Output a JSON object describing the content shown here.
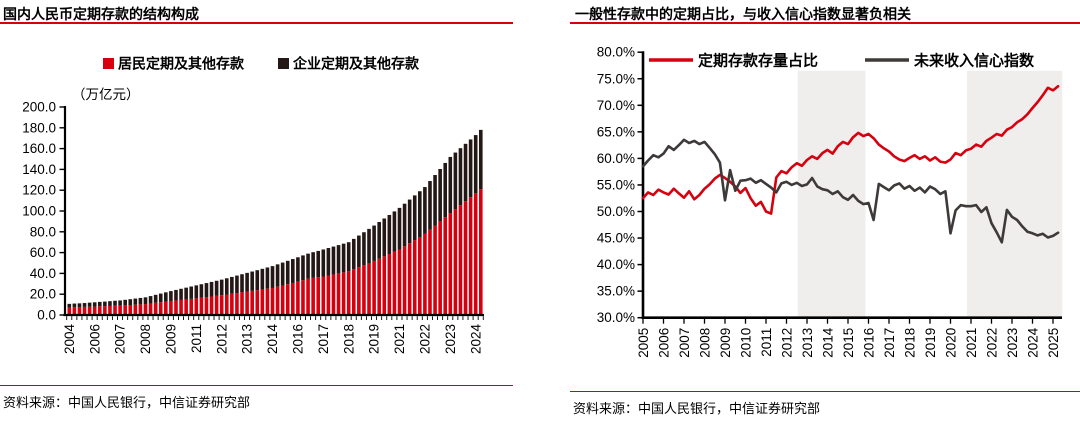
{
  "page": {
    "accent_color": "#d7000f",
    "text_color": "#000000"
  },
  "left_panel": {
    "title": "国内人民币定期存款的结构构成",
    "unit_label": "（万亿元）",
    "source": "资料来源：中国人民银行，中信证券研究部"
  },
  "right_panel": {
    "title": "一般性存款中的定期占比，与收入信心指数显著负相关",
    "source": "资料来源：中国人民银行，中信证券研究部"
  },
  "chart_data": [
    {
      "type": "bar",
      "stacked": true,
      "title": "国内人民币定期存款的结构构成",
      "unit": "（万亿元）",
      "frequency": "quarterly",
      "x_start": "2004Q4",
      "x_end": "2025Q1",
      "x_tick_every": 5,
      "x_tick_labels": [
        "2004",
        "2006",
        "2007",
        "2008",
        "2009",
        "2011",
        "2012",
        "2013",
        "2014",
        "2016",
        "2017",
        "2018",
        "2019",
        "2021",
        "2022",
        "2023",
        "2024"
      ],
      "ylim": [
        0,
        200
      ],
      "y_tick_step": 20,
      "grid": false,
      "legend_position": "top",
      "series": [
        {
          "name": "居民定期及其他存款",
          "color": "#d7000f",
          "values": [
            7.3,
            7.5,
            7.6,
            7.8,
            8.0,
            8.2,
            8.4,
            8.5,
            8.7,
            8.9,
            9.0,
            9.3,
            9.6,
            9.9,
            10.2,
            10.5,
            11.1,
            11.7,
            12.3,
            12.9,
            13.5,
            14.0,
            14.5,
            15.0,
            15.5,
            16.0,
            16.6,
            17.2,
            17.8,
            18.4,
            19.0,
            19.7,
            20.4,
            21.1,
            21.8,
            22.5,
            23.2,
            23.9,
            24.6,
            25.3,
            26.0,
            27.2,
            28.4,
            29.6,
            30.8,
            32.0,
            33.5,
            35.0,
            35.7,
            36.3,
            37.0,
            38.0,
            39.0,
            40.0,
            41.0,
            42.0,
            44.0,
            46.0,
            48.0,
            50.0,
            52.0,
            54.2,
            56.4,
            58.6,
            60.8,
            63.0,
            66.0,
            69.0,
            72.0,
            75.0,
            78.0,
            82.0,
            86.0,
            90.0,
            94.0,
            98.0,
            101.8,
            105.6,
            109.4,
            113.2,
            117.0,
            121.0
          ]
        },
        {
          "name": "企业定期及其他存款",
          "color": "#231815",
          "values": [
            3.4,
            3.5,
            3.6,
            3.7,
            3.9,
            4.0,
            4.2,
            4.4,
            4.6,
            4.8,
            5.0,
            5.3,
            5.6,
            5.9,
            6.2,
            6.5,
            7.1,
            7.7,
            8.3,
            8.9,
            9.5,
            10.1,
            10.7,
            11.3,
            11.9,
            12.5,
            13.0,
            13.5,
            14.0,
            14.5,
            15.0,
            15.6,
            16.2,
            16.8,
            17.4,
            18.0,
            18.6,
            19.2,
            19.8,
            20.4,
            21.0,
            21.5,
            22.0,
            22.5,
            23.0,
            23.5,
            23.8,
            24.0,
            24.7,
            25.3,
            26.0,
            26.4,
            26.8,
            27.2,
            27.6,
            28.0,
            29.2,
            30.4,
            31.6,
            32.8,
            34.0,
            35.2,
            36.4,
            37.6,
            38.8,
            40.0,
            41.0,
            42.0,
            43.0,
            44.0,
            45.0,
            46.8,
            48.6,
            50.4,
            52.2,
            54.0,
            54.4,
            54.8,
            55.2,
            55.6,
            56.0,
            57.0
          ]
        }
      ]
    },
    {
      "type": "line",
      "title": "一般性存款中的定期占比，与收入信心指数显著负相关",
      "frequency": "quarterly",
      "x_start": 2005.0,
      "x_step": 0.25,
      "x_tick_labels": [
        "2005",
        "2006",
        "2007",
        "2008",
        "2009",
        "2010",
        "2011",
        "2012",
        "2013",
        "2014",
        "2015",
        "2016",
        "2017",
        "2018",
        "2019",
        "2020",
        "2021",
        "2022",
        "2023",
        "2024",
        "2025"
      ],
      "ylim": [
        30,
        80
      ],
      "y_tick_step": 5,
      "y_tick_suffix": "%",
      "grid": false,
      "legend_position": "top-inside",
      "shading_color": "#efeeec",
      "shaded_regions": [
        {
          "from": 2012.55,
          "to": 2015.85
        },
        {
          "from": 2020.8,
          "to": 2025.45
        }
      ],
      "series": [
        {
          "name": "定期存款存量占比",
          "color": "#d7000f",
          "values": [
            52.5,
            53.6,
            53.1,
            54.1,
            53.6,
            53.2,
            54.3,
            53.4,
            52.6,
            53.8,
            52.3,
            53.1,
            54.3,
            55.1,
            56.2,
            56.9,
            56.3,
            55.6,
            54.7,
            53.5,
            54.4,
            52.5,
            51.1,
            51.8,
            50.0,
            49.6,
            56.4,
            57.6,
            57.2,
            58.3,
            59.1,
            58.6,
            59.7,
            60.4,
            59.9,
            61.0,
            61.6,
            60.9,
            62.3,
            63.1,
            62.7,
            64.0,
            64.8,
            64.2,
            64.6,
            63.8,
            62.6,
            61.9,
            61.3,
            60.4,
            59.8,
            59.5,
            60.1,
            60.6,
            59.9,
            60.4,
            59.6,
            60.2,
            59.4,
            59.2,
            59.8,
            61.0,
            60.6,
            61.5,
            61.8,
            62.6,
            62.2,
            63.3,
            63.9,
            64.6,
            64.3,
            65.4,
            65.9,
            66.8,
            67.4,
            68.3,
            69.5,
            70.6,
            71.9,
            73.3,
            72.8,
            73.6
          ]
        },
        {
          "name": "未来收入信心指数",
          "color": "#3e3a39",
          "values": [
            58.5,
            59.6,
            60.6,
            60.2,
            60.9,
            62.3,
            61.6,
            62.5,
            63.5,
            62.9,
            63.3,
            62.7,
            63.1,
            62.0,
            60.8,
            59.2,
            52.1,
            57.8,
            53.9,
            55.8,
            55.9,
            56.2,
            55.4,
            55.9,
            55.2,
            54.5,
            53.6,
            55.3,
            55.6,
            55.0,
            55.4,
            54.8,
            55.1,
            56.3,
            54.7,
            54.2,
            54.0,
            53.3,
            53.8,
            52.7,
            52.2,
            53.1,
            52.0,
            51.4,
            51.6,
            48.4,
            55.2,
            54.6,
            54.0,
            54.9,
            55.3,
            54.3,
            54.8,
            53.9,
            54.5,
            53.6,
            54.7,
            54.2,
            53.3,
            53.8,
            45.9,
            50.2,
            51.2,
            51.0,
            51.0,
            51.2,
            49.9,
            50.8,
            47.8,
            46.1,
            44.2,
            50.3,
            49.0,
            48.4,
            47.2,
            46.2,
            45.9,
            45.5,
            45.8,
            45.1,
            45.4,
            46.0
          ]
        }
      ]
    }
  ]
}
